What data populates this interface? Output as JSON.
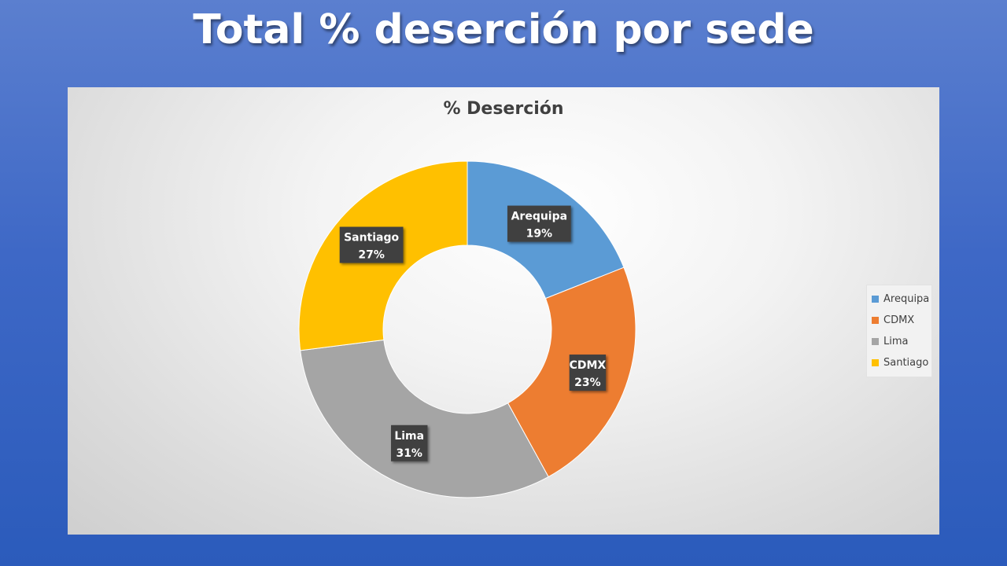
{
  "slide": {
    "title": "Total % deserción por sede"
  },
  "chart_data": {
    "type": "pie",
    "subtype": "doughnut",
    "title": "% Deserción",
    "categories": [
      "Arequipa",
      "CDMX",
      "Lima",
      "Santiago"
    ],
    "values": [
      19,
      23,
      31,
      27
    ],
    "unit": "%",
    "data_labels": [
      "19%",
      "23%",
      "31%",
      "27%"
    ],
    "colors": [
      "#5b9bd5",
      "#ed7d31",
      "#a5a5a5",
      "#ffc000"
    ],
    "legend": {
      "position": "right",
      "entries": [
        "Arequipa",
        "CDMX",
        "Lima",
        "Santiago"
      ]
    }
  }
}
